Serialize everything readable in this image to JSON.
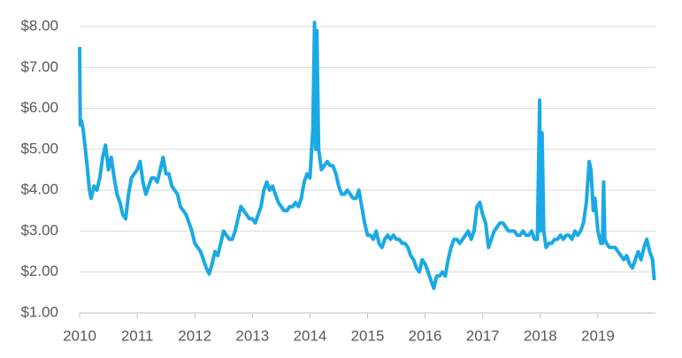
{
  "chart_data": {
    "type": "line",
    "x": [
      2010.0,
      2010.01,
      2010.03,
      2010.06,
      2010.1,
      2010.13,
      2010.17,
      2010.2,
      2010.25,
      2010.3,
      2010.35,
      2010.4,
      2010.45,
      2010.5,
      2010.55,
      2010.6,
      2010.65,
      2010.7,
      2010.75,
      2010.8,
      2010.85,
      2010.9,
      2010.95,
      2011.0,
      2011.05,
      2011.1,
      2011.15,
      2011.2,
      2011.25,
      2011.3,
      2011.35,
      2011.4,
      2011.45,
      2011.5,
      2011.55,
      2011.6,
      2011.65,
      2011.7,
      2011.75,
      2011.8,
      2011.85,
      2011.9,
      2011.95,
      2012.0,
      2012.05,
      2012.1,
      2012.15,
      2012.2,
      2012.25,
      2012.3,
      2012.35,
      2012.4,
      2012.45,
      2012.5,
      2012.55,
      2012.6,
      2012.65,
      2012.7,
      2012.75,
      2012.8,
      2012.85,
      2012.9,
      2012.95,
      2013.0,
      2013.05,
      2013.1,
      2013.15,
      2013.2,
      2013.25,
      2013.3,
      2013.35,
      2013.4,
      2013.45,
      2013.5,
      2013.55,
      2013.6,
      2013.65,
      2013.7,
      2013.75,
      2013.8,
      2013.85,
      2013.9,
      2013.95,
      2014.0,
      2014.05,
      2014.08,
      2014.1,
      2014.12,
      2014.15,
      2014.2,
      2014.25,
      2014.3,
      2014.35,
      2014.4,
      2014.45,
      2014.5,
      2014.55,
      2014.6,
      2014.65,
      2014.7,
      2014.75,
      2014.8,
      2014.85,
      2014.9,
      2014.95,
      2015.0,
      2015.05,
      2015.1,
      2015.15,
      2015.2,
      2015.25,
      2015.3,
      2015.35,
      2015.4,
      2015.45,
      2015.5,
      2015.55,
      2015.6,
      2015.65,
      2015.7,
      2015.75,
      2015.8,
      2015.85,
      2015.9,
      2015.95,
      2016.0,
      2016.05,
      2016.1,
      2016.15,
      2016.2,
      2016.25,
      2016.3,
      2016.35,
      2016.4,
      2016.45,
      2016.5,
      2016.55,
      2016.6,
      2016.65,
      2016.7,
      2016.75,
      2016.8,
      2016.85,
      2016.9,
      2016.95,
      2017.0,
      2017.05,
      2017.1,
      2017.15,
      2017.2,
      2017.25,
      2017.3,
      2017.35,
      2017.4,
      2017.45,
      2017.5,
      2017.55,
      2017.6,
      2017.65,
      2017.7,
      2017.75,
      2017.8,
      2017.85,
      2017.9,
      2017.95,
      2017.99,
      2018.0,
      2018.03,
      2018.06,
      2018.1,
      2018.15,
      2018.2,
      2018.25,
      2018.3,
      2018.35,
      2018.4,
      2018.45,
      2018.5,
      2018.55,
      2018.6,
      2018.65,
      2018.7,
      2018.75,
      2018.8,
      2018.85,
      2018.88,
      2018.92,
      2018.95,
      2019.0,
      2019.05,
      2019.08,
      2019.1,
      2019.12,
      2019.15,
      2019.2,
      2019.3,
      2019.35,
      2019.4,
      2019.45,
      2019.5,
      2019.55,
      2019.6,
      2019.65,
      2019.7,
      2019.75,
      2019.8,
      2019.85,
      2019.9,
      2019.95,
      2019.98
    ],
    "values": [
      7.5,
      5.6,
      5.7,
      5.5,
      5.0,
      4.6,
      4.0,
      3.8,
      4.1,
      4.0,
      4.3,
      4.8,
      5.1,
      4.5,
      4.8,
      4.3,
      3.9,
      3.7,
      3.4,
      3.3,
      3.9,
      4.3,
      4.4,
      4.5,
      4.7,
      4.2,
      3.9,
      4.1,
      4.3,
      4.3,
      4.2,
      4.5,
      4.8,
      4.4,
      4.4,
      4.1,
      4.0,
      3.9,
      3.6,
      3.5,
      3.4,
      3.2,
      3.0,
      2.7,
      2.6,
      2.5,
      2.3,
      2.1,
      1.95,
      2.2,
      2.5,
      2.4,
      2.7,
      3.0,
      2.9,
      2.8,
      2.8,
      3.0,
      3.3,
      3.6,
      3.5,
      3.4,
      3.3,
      3.3,
      3.2,
      3.4,
      3.6,
      4.0,
      4.2,
      4.0,
      4.1,
      3.9,
      3.7,
      3.6,
      3.5,
      3.5,
      3.6,
      3.6,
      3.7,
      3.6,
      3.8,
      4.2,
      4.4,
      4.3,
      5.5,
      8.1,
      5.0,
      7.9,
      5.0,
      4.5,
      4.6,
      4.7,
      4.6,
      4.6,
      4.4,
      4.1,
      3.9,
      3.9,
      4.0,
      3.9,
      3.8,
      3.8,
      4.0,
      3.6,
      3.2,
      2.9,
      2.9,
      2.8,
      3.0,
      2.7,
      2.6,
      2.8,
      2.9,
      2.8,
      2.9,
      2.8,
      2.8,
      2.7,
      2.7,
      2.6,
      2.4,
      2.3,
      2.1,
      2.0,
      2.3,
      2.2,
      2.0,
      1.8,
      1.6,
      1.9,
      1.9,
      2.0,
      1.9,
      2.3,
      2.6,
      2.8,
      2.8,
      2.7,
      2.8,
      2.9,
      3.0,
      2.8,
      3.0,
      3.6,
      3.7,
      3.4,
      3.2,
      2.6,
      2.8,
      3.0,
      3.1,
      3.2,
      3.2,
      3.1,
      3.0,
      3.0,
      3.0,
      2.9,
      2.9,
      3.0,
      2.9,
      2.9,
      3.0,
      2.8,
      2.8,
      6.2,
      3.0,
      5.4,
      3.0,
      2.6,
      2.7,
      2.7,
      2.8,
      2.8,
      2.9,
      2.8,
      2.9,
      2.9,
      2.8,
      3.0,
      2.9,
      3.0,
      3.2,
      3.7,
      4.7,
      4.5,
      3.5,
      3.8,
      3.0,
      2.7,
      2.7,
      4.2,
      2.8,
      2.7,
      2.6,
      2.6,
      2.5,
      2.4,
      2.3,
      2.4,
      2.2,
      2.1,
      2.3,
      2.5,
      2.3,
      2.6,
      2.8,
      2.5,
      2.3,
      1.8
    ],
    "color": "#1ba9e6",
    "xlim": [
      2010,
      2020
    ],
    "xticks": [
      2010,
      2011,
      2012,
      2013,
      2014,
      2015,
      2016,
      2017,
      2018,
      2019
    ],
    "ylim": [
      1,
      8
    ],
    "yticks": [
      {
        "value": 1,
        "label": "$1.00"
      },
      {
        "value": 2,
        "label": "$2.00"
      },
      {
        "value": 3,
        "label": "$3.00"
      },
      {
        "value": 4,
        "label": "$4.00"
      },
      {
        "value": 5,
        "label": "$5.00"
      },
      {
        "value": 6,
        "label": "$6.00"
      },
      {
        "value": 7,
        "label": "$7.00"
      },
      {
        "value": 8,
        "label": "$8.00"
      }
    ],
    "grid": true
  }
}
